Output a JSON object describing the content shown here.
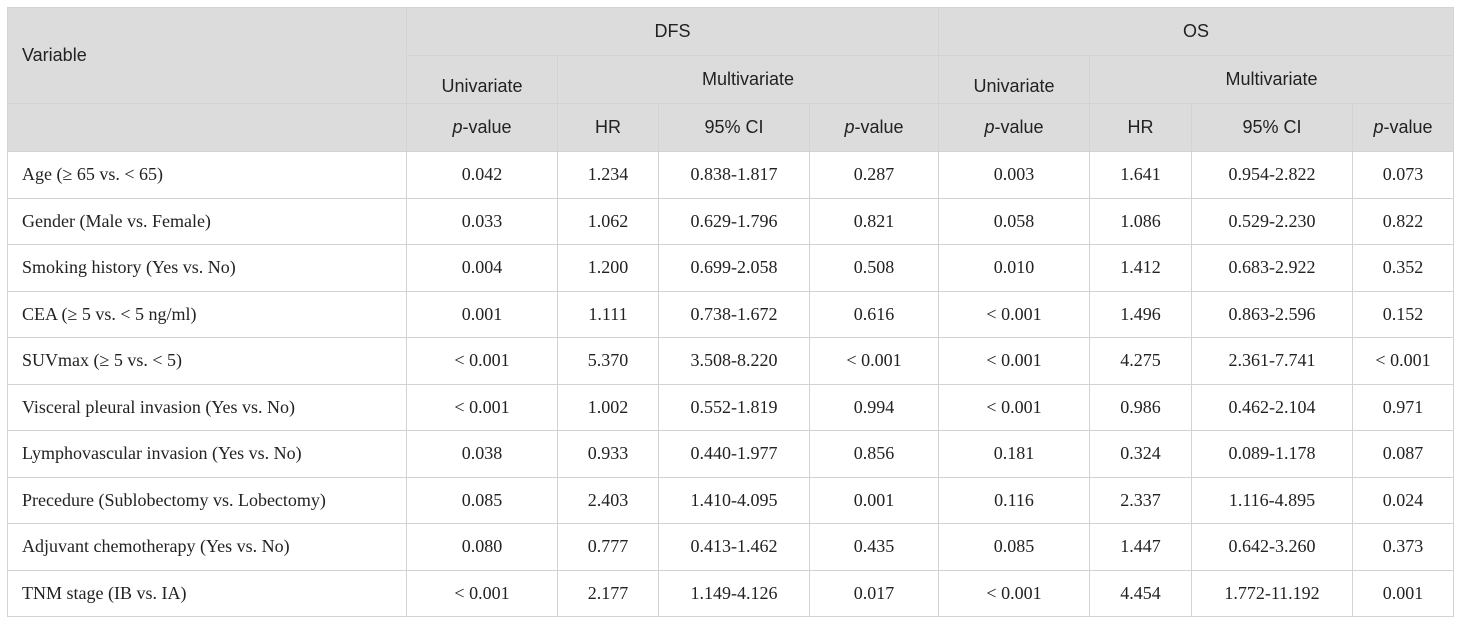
{
  "header": {
    "variable": "Variable",
    "dfs": "DFS",
    "os": "OS",
    "univariate": "Univariate",
    "multivariate": "Multivariate",
    "p": "p",
    "value_suffix": "-value",
    "hr": "HR",
    "ci": "95% CI"
  },
  "rows": [
    {
      "variable": "Age (≥ 65 vs. < 65)",
      "dfs_uni_p": "0.042",
      "dfs_hr": "1.234",
      "dfs_ci": "0.838-1.817",
      "dfs_p": "0.287",
      "os_uni_p": "0.003",
      "os_hr": "1.641",
      "os_ci": "0.954-2.822",
      "os_p": "0.073"
    },
    {
      "variable": "Gender (Male vs. Female)",
      "dfs_uni_p": "0.033",
      "dfs_hr": "1.062",
      "dfs_ci": "0.629-1.796",
      "dfs_p": "0.821",
      "os_uni_p": "0.058",
      "os_hr": "1.086",
      "os_ci": "0.529-2.230",
      "os_p": "0.822"
    },
    {
      "variable": "Smoking history (Yes vs. No)",
      "dfs_uni_p": "0.004",
      "dfs_hr": "1.200",
      "dfs_ci": "0.699-2.058",
      "dfs_p": "0.508",
      "os_uni_p": "0.010",
      "os_hr": "1.412",
      "os_ci": "0.683-2.922",
      "os_p": "0.352"
    },
    {
      "variable": "CEA (≥ 5 vs. < 5 ng/ml)",
      "dfs_uni_p": "0.001",
      "dfs_hr": "1.111",
      "dfs_ci": "0.738-1.672",
      "dfs_p": "0.616",
      "os_uni_p": "< 0.001",
      "os_hr": "1.496",
      "os_ci": "0.863-2.596",
      "os_p": "0.152"
    },
    {
      "variable": "SUVmax (≥ 5 vs. < 5)",
      "dfs_uni_p": "< 0.001",
      "dfs_hr": "5.370",
      "dfs_ci": "3.508-8.220",
      "dfs_p": "< 0.001",
      "os_uni_p": "< 0.001",
      "os_hr": "4.275",
      "os_ci": "2.361-7.741",
      "os_p": "< 0.001"
    },
    {
      "variable": "Visceral pleural invasion (Yes vs. No)",
      "dfs_uni_p": "< 0.001",
      "dfs_hr": "1.002",
      "dfs_ci": "0.552-1.819",
      "dfs_p": "0.994",
      "os_uni_p": "< 0.001",
      "os_hr": "0.986",
      "os_ci": "0.462-2.104",
      "os_p": "0.971"
    },
    {
      "variable": "Lymphovascular invasion (Yes vs. No)",
      "dfs_uni_p": "0.038",
      "dfs_hr": "0.933",
      "dfs_ci": "0.440-1.977",
      "dfs_p": "0.856",
      "os_uni_p": "0.181",
      "os_hr": "0.324",
      "os_ci": "0.089-1.178",
      "os_p": "0.087"
    },
    {
      "variable": "Precedure (Sublobectomy vs. Lobectomy)",
      "dfs_uni_p": "0.085",
      "dfs_hr": "2.403",
      "dfs_ci": "1.410-4.095",
      "dfs_p": "0.001",
      "os_uni_p": "0.116",
      "os_hr": "2.337",
      "os_ci": "1.116-4.895",
      "os_p": "0.024"
    },
    {
      "variable": "Adjuvant chemotherapy (Yes vs. No)",
      "dfs_uni_p": "0.080",
      "dfs_hr": "0.777",
      "dfs_ci": "0.413-1.462",
      "dfs_p": "0.435",
      "os_uni_p": "0.085",
      "os_hr": "1.447",
      "os_ci": "0.642-3.260",
      "os_p": "0.373"
    },
    {
      "variable": "TNM stage (IB vs. IA)",
      "dfs_uni_p": "< 0.001",
      "dfs_hr": "2.177",
      "dfs_ci": "1.149-4.126",
      "dfs_p": "0.017",
      "os_uni_p": "< 0.001",
      "os_hr": "4.454",
      "os_ci": "1.772-11.192",
      "os_p": "0.001"
    }
  ]
}
